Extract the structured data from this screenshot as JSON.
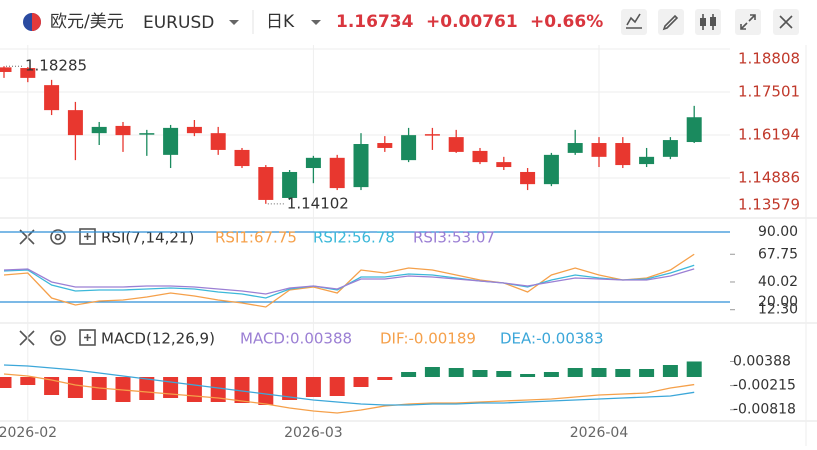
{
  "header": {
    "pair": "欧元/美元",
    "symbol": "EURUSD",
    "period": "日K",
    "change": "+0.00761",
    "change_pct": "+0.66%"
  },
  "chart_data": [
    {
      "type": "candlestick",
      "categories": [
        null,
        "2026-02",
        null,
        null,
        null,
        null,
        null,
        null,
        null,
        null,
        null,
        null,
        null,
        "2026-03",
        null,
        null,
        null,
        null,
        null,
        null,
        null,
        null,
        null,
        null,
        null,
        "2026-04",
        null,
        null,
        null,
        null
      ],
      "open": [
        1.1825,
        1.1823,
        1.1771,
        1.1695,
        1.1625,
        1.1647,
        1.1622,
        1.1559,
        1.1644,
        1.1625,
        1.1574,
        1.1522,
        1.1428,
        1.1519,
        1.155,
        1.1461,
        1.1595,
        1.1543,
        1.1622,
        1.1613,
        1.1571,
        1.1537,
        1.1507,
        1.147,
        1.1565,
        1.1595,
        1.1595,
        1.1531,
        1.1553,
        1.1598
      ],
      "high": [
        1.18285,
        1.1826,
        1.1787,
        1.172,
        1.1659,
        1.1659,
        1.1635,
        1.165,
        1.1665,
        1.1644,
        1.158,
        1.1528,
        1.1513,
        1.1556,
        1.1559,
        1.1625,
        1.1616,
        1.1641,
        1.1641,
        1.1635,
        1.158,
        1.1553,
        1.1519,
        1.1565,
        1.1635,
        1.1613,
        1.1613,
        1.158,
        1.1613,
        1.1708
      ],
      "low": [
        1.1793,
        1.178,
        1.168,
        1.1543,
        1.1589,
        1.1568,
        1.1556,
        1.1519,
        1.1616,
        1.1559,
        1.1519,
        1.14102,
        1.1422,
        1.1473,
        1.1452,
        1.1452,
        1.1568,
        1.1537,
        1.1574,
        1.1565,
        1.1531,
        1.1513,
        1.1452,
        1.1464,
        1.1559,
        1.1522,
        1.1519,
        1.1522,
        1.1546,
        1.1595
      ],
      "close": [
        1.1811,
        1.1793,
        1.1695,
        1.1619,
        1.1644,
        1.1619,
        1.1625,
        1.1641,
        1.1625,
        1.1574,
        1.1525,
        1.1422,
        1.1507,
        1.155,
        1.1458,
        1.1592,
        1.158,
        1.1619,
        1.1619,
        1.1568,
        1.1537,
        1.1522,
        1.147,
        1.1559,
        1.1595,
        1.1553,
        1.1528,
        1.1553,
        1.1604,
        1.16734
      ],
      "up_color": "#1a8a5e",
      "down_color": "#e8372f",
      "ylim": [
        1.13762,
        1.1893
      ],
      "yticks": [
        1.18808,
        1.17501,
        1.16194,
        1.14886,
        1.13579
      ],
      "grid": true
    },
    {
      "type": "line",
      "title": "RSI(7,14,21)",
      "series": [
        {
          "name": "RSI1:67.75",
          "color": "#f5a04a",
          "values": [
            47,
            49,
            24,
            17,
            21,
            22,
            25,
            29,
            26,
            22,
            19,
            15,
            32,
            35,
            29,
            52,
            49,
            54,
            52,
            47,
            42,
            39,
            30,
            47,
            54,
            47,
            42,
            44,
            52,
            67.75
          ]
        },
        {
          "name": "RSI2:56.78",
          "color": "#3cb8d9",
          "values": [
            51,
            52,
            37,
            31,
            32,
            32,
            33,
            34,
            33,
            30,
            28,
            24,
            33,
            36,
            32,
            45,
            45,
            48,
            47,
            44,
            41,
            39,
            35,
            42,
            47,
            44,
            42,
            43,
            49,
            56.78
          ]
        },
        {
          "name": "RSI3:53.07",
          "color": "#9b7fd4",
          "values": [
            52,
            53,
            40,
            35,
            35,
            35,
            36,
            36,
            35,
            33,
            31,
            28,
            34,
            36,
            33,
            43,
            43,
            46,
            45,
            43,
            41,
            39,
            36,
            40,
            44,
            43,
            42,
            42,
            46,
            53.07
          ]
        }
      ],
      "ylim": [
        0,
        100
      ],
      "yticks": [
        {
          "value": 90,
          "label": "90.00"
        },
        {
          "value": 20,
          "label": "20.00"
        }
      ],
      "axis_labels": [
        67.75,
        40.02,
        {
          "value": 12.3,
          "label": "12.30"
        }
      ],
      "level_color": "#2f8fd8"
    },
    {
      "type": "macd",
      "title": "MACD(12,26,9)",
      "series": [
        {
          "name": "MACD:0.00388",
          "type": "bar",
          "color": "#9b7fd4",
          "up_color": "#1a8a5e",
          "down_color": "#e8372f",
          "values": [
            -0.00275,
            -0.002,
            -0.0045,
            -0.00525,
            -0.00575,
            -0.00625,
            -0.00575,
            -0.00525,
            -0.00625,
            -0.00625,
            -0.0065,
            -0.007,
            -0.00575,
            -0.005,
            -0.00475,
            -0.0025,
            -0.00075,
            0.00125,
            0.0025,
            0.00225,
            0.00175,
            0.0015,
            0.00075,
            0.00125,
            0.00225,
            0.00225,
            0.002,
            0.002,
            0.003,
            0.00388
          ]
        },
        {
          "name": "DIF:-0.00189",
          "type": "line",
          "color": "#f5a04a",
          "values": [
            0.00075,
            0.00025,
            -0.00075,
            -0.002,
            -0.00275,
            -0.00325,
            -0.00375,
            -0.00425,
            -0.00475,
            -0.00525,
            -0.006,
            -0.00675,
            -0.00775,
            -0.0085,
            -0.009,
            -0.00825,
            -0.00725,
            -0.00675,
            -0.0065,
            -0.0065,
            -0.00625,
            -0.006,
            -0.00575,
            -0.0055,
            -0.005,
            -0.0045,
            -0.00425,
            -0.004,
            -0.00275,
            -0.00189
          ]
        },
        {
          "name": "DEA:-0.00383",
          "type": "line",
          "color": "#3ca7d9",
          "values": [
            0.003,
            0.00275,
            0.00225,
            0.00175,
            0.001,
            0.00025,
            -0.0005,
            -0.00125,
            -0.002,
            -0.00275,
            -0.0035,
            -0.00425,
            -0.005,
            -0.00575,
            -0.00625,
            -0.00675,
            -0.007,
            -0.007,
            -0.00675,
            -0.00675,
            -0.0065,
            -0.0065,
            -0.00625,
            -0.006,
            -0.00575,
            -0.0055,
            -0.00525,
            -0.005,
            -0.00475,
            -0.00383
          ]
        }
      ],
      "ylim": [
        -0.01075,
        0.013
      ],
      "yticks": [
        0.00388,
        -0.00215,
        -0.00818
      ]
    }
  ]
}
